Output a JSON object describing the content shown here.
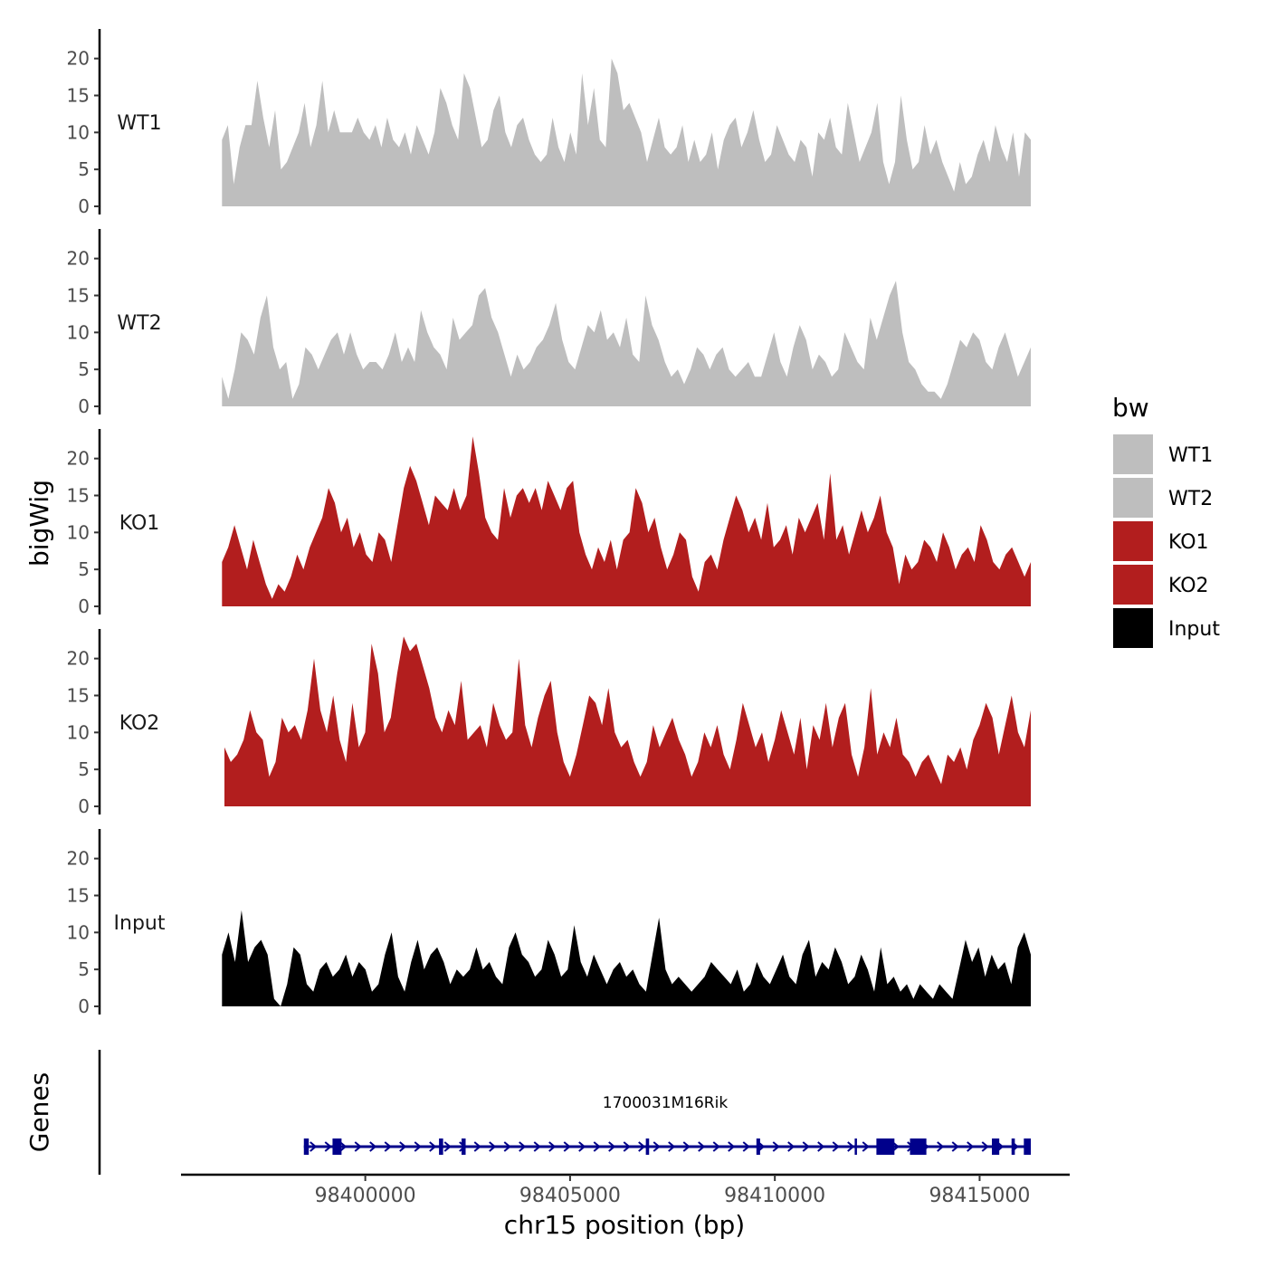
{
  "chart_data": {
    "type": "area",
    "y_axis_title": "bigWig",
    "x_axis_title": "chr15 position (bp)",
    "xlim": [
      98395500,
      98417200
    ],
    "x_ticks": [
      98400000,
      98405000,
      98410000,
      98415000
    ],
    "x_tick_labels": [
      "98400000",
      "98405000",
      "98410000",
      "98415000"
    ],
    "y_ticks": [
      0,
      5,
      10,
      15,
      20
    ],
    "y_tick_labels": [
      "0",
      "5",
      "10",
      "15",
      "20"
    ],
    "ylim": [
      0,
      24
    ],
    "legend": {
      "title": "bw",
      "position": "right",
      "entries": [
        {
          "label": "WT1",
          "color": "#bebebe"
        },
        {
          "label": "WT2",
          "color": "#bebebe"
        },
        {
          "label": "KO1",
          "color": "#b21e1e"
        },
        {
          "label": "KO2",
          "color": "#b21e1e"
        },
        {
          "label": "Input",
          "color": "#000000"
        }
      ]
    },
    "series": [
      {
        "name": "WT1",
        "color": "#bebebe",
        "x_start": 98396500,
        "x_end": 98416250,
        "values": [
          9,
          11,
          3,
          8,
          11,
          11,
          17,
          12,
          8,
          13,
          5,
          6,
          8,
          10,
          14,
          8,
          11,
          17,
          10,
          13,
          10,
          10,
          10,
          12,
          10,
          9,
          11,
          8,
          12,
          9,
          8,
          10,
          7,
          11,
          9,
          7,
          10,
          16,
          14,
          11,
          9,
          18,
          16,
          12,
          8,
          9,
          13,
          15,
          10,
          8,
          11,
          12,
          9,
          7,
          6,
          7,
          12,
          8,
          6,
          10,
          7,
          18,
          11,
          16,
          9,
          8,
          20,
          18,
          13,
          14,
          12,
          10,
          6,
          9,
          12,
          8,
          7,
          8,
          11,
          6,
          9,
          6,
          7,
          10,
          5,
          9,
          11,
          12,
          8,
          10,
          13,
          9,
          6,
          7,
          11,
          9,
          7,
          6,
          9,
          8,
          4,
          10,
          9,
          12,
          8,
          7,
          14,
          10,
          6,
          8,
          10,
          14,
          6,
          3,
          6,
          15,
          9,
          5,
          6,
          11,
          7,
          9,
          6,
          4,
          2,
          6,
          3,
          4,
          7,
          9,
          6,
          11,
          8,
          6,
          10,
          4,
          10,
          9
        ]
      },
      {
        "name": "WT2",
        "color": "#bebebe",
        "x_start": 98396500,
        "x_end": 98416250,
        "values": [
          4,
          1,
          5,
          10,
          9,
          7,
          12,
          15,
          8,
          5,
          6,
          1,
          3,
          8,
          7,
          5,
          7,
          9,
          10,
          7,
          10,
          7,
          5,
          6,
          6,
          5,
          7,
          10,
          6,
          8,
          6,
          13,
          10,
          8,
          7,
          5,
          12,
          9,
          10,
          11,
          15,
          16,
          12,
          10,
          7,
          4,
          7,
          5,
          6,
          8,
          9,
          11,
          14,
          9,
          6,
          5,
          8,
          11,
          10,
          13,
          9,
          10,
          8,
          12,
          7,
          6,
          15,
          11,
          9,
          6,
          4,
          5,
          3,
          5,
          8,
          7,
          5,
          7,
          8,
          5,
          4,
          5,
          6,
          4,
          4,
          7,
          10,
          6,
          4,
          8,
          11,
          9,
          5,
          7,
          6,
          4,
          5,
          10,
          8,
          6,
          5,
          12,
          9,
          12,
          15,
          17,
          10,
          6,
          5,
          3,
          2,
          2,
          1,
          3,
          6,
          9,
          8,
          10,
          9,
          6,
          5,
          8,
          10,
          7,
          4,
          6,
          8
        ]
      },
      {
        "name": "KO1",
        "color": "#b21e1e",
        "x_start": 98396500,
        "x_end": 98416250,
        "values": [
          6,
          8,
          11,
          8,
          5,
          9,
          6,
          3,
          1,
          3,
          2,
          4,
          7,
          5,
          8,
          10,
          12,
          16,
          14,
          10,
          12,
          8,
          10,
          7,
          6,
          10,
          9,
          6,
          11,
          16,
          19,
          17,
          14,
          11,
          15,
          14,
          13,
          16,
          13,
          15,
          23,
          18,
          12,
          10,
          9,
          16,
          12,
          15,
          16,
          14,
          16,
          13,
          17,
          15,
          13,
          16,
          17,
          10,
          7,
          5,
          8,
          6,
          9,
          5,
          9,
          10,
          16,
          14,
          10,
          12,
          8,
          5,
          7,
          10,
          9,
          4,
          2,
          6,
          7,
          5,
          9,
          12,
          15,
          13,
          10,
          12,
          9,
          14,
          8,
          9,
          11,
          7,
          12,
          10,
          12,
          14,
          9,
          18,
          9,
          11,
          7,
          10,
          13,
          10,
          12,
          15,
          10,
          8,
          3,
          7,
          5,
          6,
          9,
          8,
          6,
          10,
          8,
          5,
          7,
          8,
          6,
          11,
          9,
          6,
          5,
          7,
          8,
          6,
          4,
          6
        ]
      },
      {
        "name": "KO2",
        "color": "#b21e1e",
        "x_start": 98396560,
        "x_end": 98416250,
        "values": [
          8,
          6,
          7,
          9,
          13,
          10,
          9,
          4,
          6,
          12,
          10,
          11,
          9,
          13,
          20,
          13,
          10,
          15,
          9,
          6,
          14,
          8,
          10,
          22,
          18,
          10,
          12,
          18,
          23,
          21,
          22,
          19,
          16,
          12,
          10,
          13,
          11,
          17,
          9,
          10,
          11,
          8,
          14,
          11,
          9,
          10,
          20,
          11,
          8,
          12,
          15,
          17,
          10,
          6,
          4,
          7,
          11,
          15,
          14,
          11,
          16,
          10,
          8,
          9,
          6,
          4,
          6,
          11,
          8,
          10,
          12,
          9,
          7,
          4,
          6,
          10,
          8,
          11,
          7,
          5,
          9,
          14,
          11,
          8,
          10,
          6,
          9,
          13,
          10,
          7,
          12,
          5,
          11,
          9,
          14,
          8,
          12,
          14,
          7,
          4,
          8,
          16,
          7,
          10,
          8,
          12,
          7,
          6,
          4,
          6,
          7,
          5,
          3,
          7,
          6,
          8,
          5,
          9,
          11,
          14,
          12,
          7,
          11,
          15,
          10,
          8,
          13
        ]
      },
      {
        "name": "Input",
        "color": "#000000",
        "x_start": 98396500,
        "x_end": 98416250,
        "values": [
          7,
          10,
          6,
          13,
          6,
          8,
          9,
          7,
          1,
          0,
          3,
          8,
          7,
          3,
          2,
          5,
          6,
          4,
          5,
          7,
          4,
          6,
          5,
          2,
          3,
          7,
          10,
          4,
          2,
          6,
          9,
          5,
          7,
          8,
          6,
          3,
          5,
          4,
          5,
          8,
          5,
          6,
          4,
          3,
          8,
          10,
          7,
          6,
          4,
          5,
          9,
          7,
          4,
          5,
          11,
          6,
          4,
          7,
          5,
          3,
          5,
          6,
          4,
          5,
          3,
          2,
          7,
          12,
          5,
          3,
          4,
          3,
          2,
          3,
          4,
          6,
          5,
          4,
          3,
          5,
          2,
          3,
          6,
          4,
          3,
          5,
          7,
          4,
          3,
          7,
          9,
          4,
          6,
          5,
          8,
          6,
          3,
          4,
          7,
          5,
          2,
          8,
          3,
          4,
          2,
          3,
          1,
          3,
          2,
          1,
          3,
          2,
          1,
          5,
          9,
          6,
          8,
          4,
          7,
          5,
          6,
          3,
          8,
          10,
          7
        ]
      }
    ],
    "genes_track": {
      "label": "Genes",
      "gene_name": "1700031M16Rik",
      "strand": "+",
      "start": 98398500,
      "end": 98416250,
      "color": "#00008b",
      "exons": [
        [
          98398500,
          98398620
        ],
        [
          98399200,
          98399420
        ],
        [
          98401800,
          98401900
        ],
        [
          98402350,
          98402450
        ],
        [
          98406850,
          98406930
        ],
        [
          98409550,
          98409640
        ],
        [
          98411950,
          98412000
        ],
        [
          98412480,
          98412920
        ],
        [
          98413300,
          98413700
        ],
        [
          98415300,
          98415480
        ],
        [
          98415780,
          98415860
        ],
        [
          98416080,
          98416250
        ]
      ]
    }
  }
}
